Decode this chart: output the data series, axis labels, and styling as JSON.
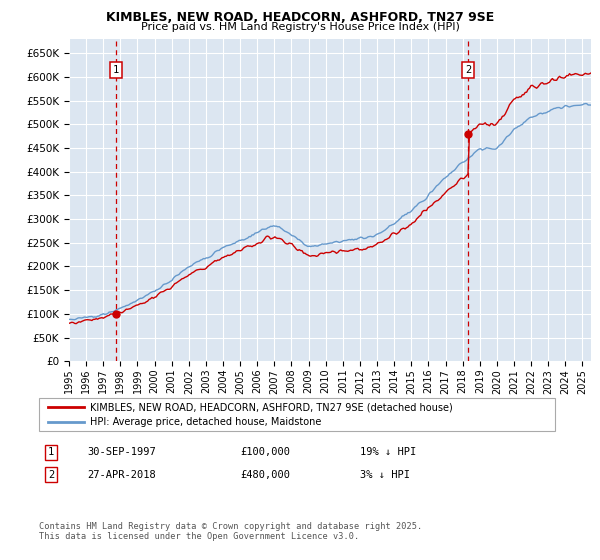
{
  "title": "KIMBLES, NEW ROAD, HEADCORN, ASHFORD, TN27 9SE",
  "subtitle": "Price paid vs. HM Land Registry's House Price Index (HPI)",
  "ylim": [
    0,
    680000
  ],
  "yticks": [
    0,
    50000,
    100000,
    150000,
    200000,
    250000,
    300000,
    350000,
    400000,
    450000,
    500000,
    550000,
    600000,
    650000
  ],
  "xlim_start": 1995.0,
  "xlim_end": 2025.5,
  "bg_color": "#dce6f1",
  "plot_bg": "#dce6f1",
  "grid_color": "#ffffff",
  "transaction1": {
    "price": 100000,
    "x": 1997.75,
    "label": "1",
    "note": "30-SEP-1997",
    "amount": "£100,000",
    "hpi_note": "19% ↓ HPI"
  },
  "transaction2": {
    "price": 480000,
    "x": 2018.32,
    "label": "2",
    "note": "27-APR-2018",
    "amount": "£480,000",
    "hpi_note": "3% ↓ HPI"
  },
  "legend_line1": "KIMBLES, NEW ROAD, HEADCORN, ASHFORD, TN27 9SE (detached house)",
  "legend_line2": "HPI: Average price, detached house, Maidstone",
  "footer": "Contains HM Land Registry data © Crown copyright and database right 2025.\nThis data is licensed under the Open Government Licence v3.0.",
  "hpi_color": "#6699cc",
  "price_color": "#cc0000",
  "vline_color": "#cc0000",
  "marker_box_color": "#cc0000",
  "xticks": [
    1995,
    1996,
    1997,
    1998,
    1999,
    2000,
    2001,
    2002,
    2003,
    2004,
    2005,
    2006,
    2007,
    2008,
    2009,
    2010,
    2011,
    2012,
    2013,
    2014,
    2015,
    2016,
    2017,
    2018,
    2019,
    2020,
    2021,
    2022,
    2023,
    2024,
    2025
  ]
}
